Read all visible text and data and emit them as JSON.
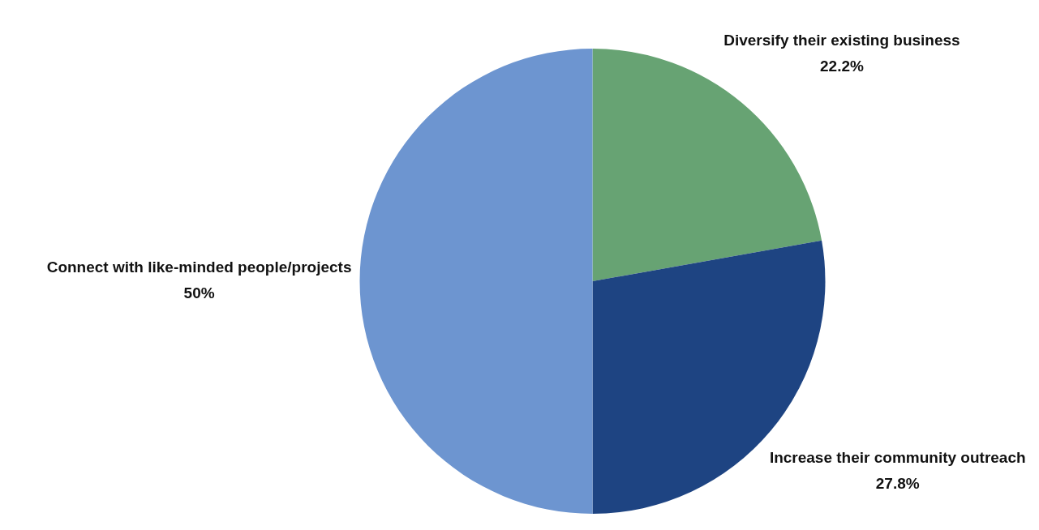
{
  "chart_data": {
    "type": "pie",
    "categories": [
      "Diversify their existing business",
      "Increase their community outreach",
      "Connect with like-minded people/projects"
    ],
    "values": [
      22.2,
      27.8,
      50
    ],
    "colors": [
      "#67a373",
      "#1e4482",
      "#6d95d0"
    ],
    "value_labels": [
      "22.2%",
      "27.8%",
      "50%"
    ],
    "legend": false
  }
}
